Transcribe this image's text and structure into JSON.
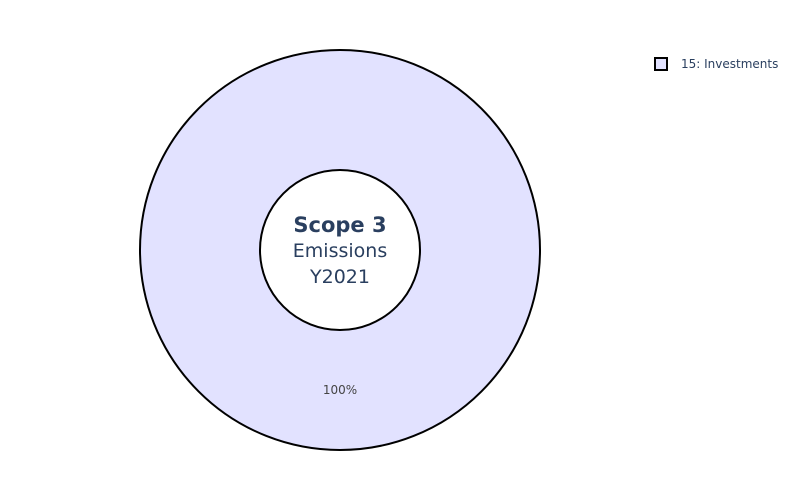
{
  "chart_data": {
    "type": "pie",
    "hole": true,
    "categories": [
      "15: Investments"
    ],
    "values": [
      100
    ],
    "slice_labels": [
      "100%"
    ],
    "colors": [
      "#e2e2ff"
    ],
    "center_text": {
      "title": "Scope 3",
      "line1": "Emissions",
      "line2": "Y2021"
    },
    "legend": {
      "placement": "top-right",
      "entries": [
        "15: Investments"
      ]
    }
  }
}
